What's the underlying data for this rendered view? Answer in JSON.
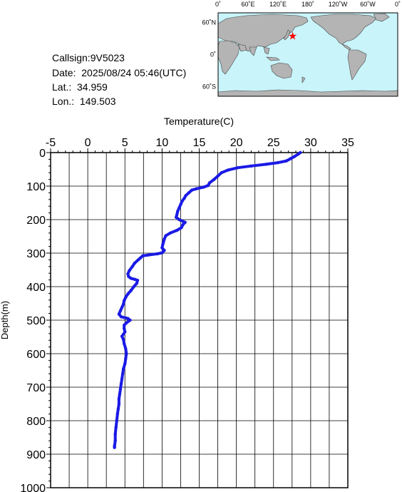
{
  "info": {
    "callsign": "Callsign:9V5023",
    "date": "Date:  2025/08/24 05:46(UTC)",
    "lat": "Lat.:  34.959",
    "lon": "Lon.:  149.503"
  },
  "map": {
    "top_labels": [
      "0˚",
      "60˚E",
      "120˚E",
      "180˚",
      "120˚W",
      "60˚W",
      "0˚"
    ],
    "left_labels": [
      "60˚N",
      "0˚",
      "60˚S"
    ],
    "marker": {
      "lat": 34.959,
      "lon": 149.503
    },
    "colors": {
      "ocean": "#c8f4fa",
      "land": "#b4b4b4",
      "marker": "#ff0000"
    }
  },
  "chart_data": {
    "type": "line",
    "xlabel": "Temperature(C)",
    "ylabel": "Depth(m)",
    "xlim": [
      -5,
      35
    ],
    "ylim": [
      0,
      1000
    ],
    "x_ticks": [
      "-5",
      "0",
      "5",
      "10",
      "15",
      "20",
      "25",
      "30",
      "35"
    ],
    "y_ticks": [
      "0",
      "100",
      "200",
      "300",
      "400",
      "500",
      "600",
      "700",
      "800",
      "900",
      "1000"
    ],
    "grid": true,
    "color": "#1a1ae6",
    "series": [
      {
        "points": [
          [
            28.6,
            0
          ],
          [
            28.3,
            5
          ],
          [
            27.8,
            12
          ],
          [
            27.3,
            18
          ],
          [
            26.7,
            25
          ],
          [
            25.6,
            30
          ],
          [
            24.0,
            35
          ],
          [
            22.0,
            40
          ],
          [
            20.2,
            45
          ],
          [
            18.9,
            52
          ],
          [
            18.0,
            60
          ],
          [
            17.5,
            70
          ],
          [
            17.0,
            80
          ],
          [
            16.4,
            90
          ],
          [
            16.2,
            98
          ],
          [
            15.6,
            103
          ],
          [
            14.6,
            108
          ],
          [
            14.0,
            112
          ],
          [
            13.6,
            120
          ],
          [
            13.2,
            128
          ],
          [
            13.0,
            136
          ],
          [
            12.7,
            145
          ],
          [
            12.5,
            155
          ],
          [
            12.3,
            165
          ],
          [
            12.1,
            175
          ],
          [
            12.0,
            185
          ],
          [
            11.9,
            193
          ],
          [
            12.3,
            200
          ],
          [
            13.1,
            208
          ],
          [
            12.8,
            215
          ],
          [
            12.6,
            224
          ],
          [
            12.0,
            232
          ],
          [
            11.1,
            240
          ],
          [
            10.5,
            248
          ],
          [
            10.3,
            258
          ],
          [
            10.2,
            266
          ],
          [
            10.1,
            274
          ],
          [
            10.0,
            284
          ],
          [
            10.3,
            292
          ],
          [
            10.0,
            299
          ],
          [
            9.4,
            302
          ],
          [
            8.3,
            305
          ],
          [
            7.4,
            308
          ],
          [
            7.1,
            314
          ],
          [
            6.8,
            320
          ],
          [
            6.3,
            330
          ],
          [
            6.0,
            340
          ],
          [
            5.6,
            352
          ],
          [
            5.4,
            362
          ],
          [
            5.5,
            370
          ],
          [
            5.8,
            375
          ],
          [
            6.3,
            378
          ],
          [
            6.7,
            381
          ],
          [
            6.6,
            390
          ],
          [
            6.2,
            400
          ],
          [
            5.8,
            412
          ],
          [
            5.4,
            422
          ],
          [
            5.1,
            432
          ],
          [
            4.9,
            442
          ],
          [
            4.8,
            452
          ],
          [
            4.6,
            462
          ],
          [
            4.4,
            472
          ],
          [
            4.2,
            482
          ],
          [
            4.5,
            490
          ],
          [
            5.4,
            495
          ],
          [
            5.7,
            500
          ],
          [
            5.2,
            508
          ],
          [
            4.9,
            515
          ],
          [
            4.9,
            525
          ],
          [
            5.0,
            535
          ],
          [
            4.6,
            548
          ],
          [
            4.8,
            558
          ],
          [
            4.9,
            570
          ],
          [
            5.1,
            585
          ],
          [
            5.2,
            600
          ],
          [
            5.1,
            615
          ],
          [
            5.0,
            630
          ],
          [
            4.8,
            645
          ],
          [
            4.7,
            660
          ],
          [
            4.6,
            675
          ],
          [
            4.5,
            690
          ],
          [
            4.4,
            705
          ],
          [
            4.3,
            720
          ],
          [
            4.2,
            735
          ],
          [
            4.2,
            750
          ],
          [
            4.1,
            765
          ],
          [
            4.0,
            780
          ],
          [
            3.9,
            800
          ],
          [
            3.8,
            820
          ],
          [
            3.7,
            840
          ],
          [
            3.7,
            860
          ],
          [
            3.6,
            875
          ],
          [
            3.6,
            880
          ]
        ]
      }
    ]
  }
}
